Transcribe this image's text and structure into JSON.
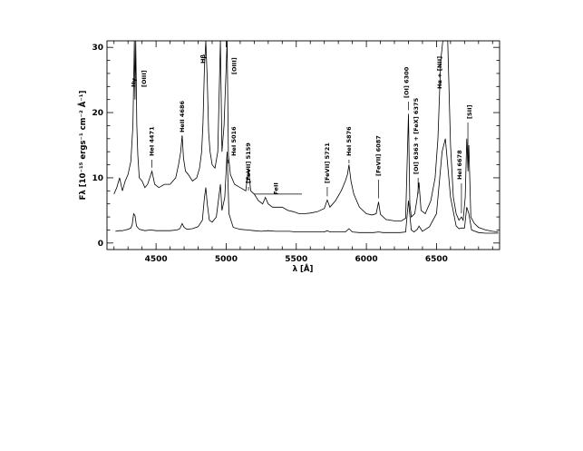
{
  "chart_data": {
    "type": "line",
    "xlabel": "λ [Å]",
    "ylabel": "Fλ [10⁻¹⁵ ergs⁻¹ cm⁻² Å⁻¹]",
    "xlim": [
      4150,
      6950
    ],
    "ylim": [
      -1,
      31
    ],
    "xticks": [
      4500,
      5000,
      5500,
      6000,
      6500
    ],
    "yticks": [
      0,
      10,
      20,
      30
    ],
    "grid": false,
    "series": [
      {
        "x": [
          4210,
          4240,
          4260,
          4280,
          4300,
          4320,
          4330,
          4340,
          4350,
          4360,
          4380,
          4420,
          4460,
          4500,
          4550,
          4600,
          4650,
          4670,
          4686,
          4700,
          4720,
          4760,
          4800,
          4830,
          4845,
          4855,
          4865,
          4880,
          4900,
          4930,
          4959,
          4970,
          4990,
          5007,
          5020,
          5050,
          5100,
          5150,
          5200,
          5250,
          5300,
          5350,
          5400,
          5450,
          5500,
          5550,
          5600,
          5650,
          5700,
          5721,
          5740,
          5800,
          5850,
          5876,
          5900,
          5950,
          6000,
          6050,
          6087,
          6120,
          6180,
          6240,
          6280,
          6300,
          6320,
          6340,
          6363,
          6375,
          6400,
          6450,
          6500,
          6540,
          6563,
          6600,
          6640,
          6660,
          6678,
          6700,
          6716,
          6731,
          6750,
          6800,
          6850,
          6900,
          6940
        ],
        "values": [
          1.8,
          1.9,
          1.9,
          2.0,
          2.1,
          2.3,
          2.8,
          4.5,
          4.2,
          2.6,
          2.1,
          1.9,
          2.0,
          1.9,
          1.9,
          1.9,
          2.0,
          2.2,
          3.0,
          2.4,
          2.1,
          2.2,
          2.5,
          3.5,
          7.0,
          8.5,
          6.0,
          3.5,
          3.2,
          4.0,
          9.0,
          5.0,
          7.0,
          14.0,
          4.5,
          2.4,
          2.1,
          2.0,
          1.9,
          1.8,
          1.9,
          1.8,
          1.8,
          1.8,
          1.7,
          1.7,
          1.7,
          1.7,
          1.7,
          1.9,
          1.7,
          1.7,
          1.7,
          2.2,
          1.7,
          1.6,
          1.6,
          1.6,
          1.7,
          1.6,
          1.6,
          1.6,
          1.7,
          6.5,
          2.0,
          1.7,
          2.1,
          2.6,
          1.8,
          2.5,
          4.5,
          14.0,
          16.0,
          7.0,
          2.6,
          2.2,
          2.3,
          2.3,
          5.5,
          4.5,
          2.0,
          1.6,
          1.5,
          1.5,
          1.5
        ]
      },
      {
        "x": [
          4200,
          4220,
          4240,
          4260,
          4280,
          4300,
          4320,
          4335,
          4345,
          4350,
          4355,
          4363,
          4370,
          4380,
          4400,
          4420,
          4440,
          4471,
          4490,
          4520,
          4560,
          4600,
          4640,
          4660,
          4676,
          4686,
          4696,
          4710,
          4730,
          4760,
          4790,
          4810,
          4825,
          4835,
          4845,
          4855,
          4865,
          4875,
          4885,
          4900,
          4920,
          4940,
          4959,
          4970,
          4985,
          5007,
          5016,
          5030,
          5060,
          5100,
          5140,
          5159,
          5175,
          5200,
          5230,
          5260,
          5280,
          5300,
          5330,
          5360,
          5400,
          5440,
          5480,
          5520,
          5560,
          5600,
          5650,
          5700,
          5721,
          5740,
          5780,
          5820,
          5850,
          5865,
          5876,
          5890,
          5910,
          5950,
          6000,
          6040,
          6070,
          6087,
          6100,
          6140,
          6200,
          6250,
          6280,
          6300,
          6310,
          6320,
          6345,
          6363,
          6375,
          6390,
          6420,
          6460,
          6490,
          6510,
          6530,
          6545,
          6563,
          6580,
          6600,
          6620,
          6640,
          6660,
          6678,
          6690,
          6705,
          6716,
          6725,
          6731,
          6745,
          6770,
          6800,
          6850,
          6900,
          6940
        ],
        "values": [
          7.5,
          8.5,
          10.0,
          8.0,
          9.5,
          10.5,
          12.5,
          18.0,
          32.0,
          22.0,
          32.0,
          18.0,
          13.5,
          10.0,
          9.5,
          8.5,
          9.0,
          11.0,
          9.0,
          8.5,
          9.0,
          9.0,
          10.0,
          12.0,
          14.0,
          16.5,
          13.0,
          11.0,
          10.5,
          9.5,
          10.0,
          11.5,
          14.0,
          18.5,
          27.0,
          32.0,
          25.0,
          17.0,
          14.0,
          12.0,
          11.5,
          14.0,
          32.0,
          14.0,
          18.0,
          32.0,
          13.5,
          10.5,
          9.0,
          8.5,
          8.0,
          11.5,
          8.0,
          7.5,
          6.5,
          6.0,
          7.0,
          6.0,
          5.5,
          5.5,
          5.5,
          5.0,
          4.8,
          4.5,
          4.5,
          4.6,
          4.8,
          5.3,
          6.6,
          5.5,
          6.5,
          8.0,
          9.5,
          10.5,
          12.0,
          9.5,
          7.5,
          5.5,
          4.5,
          4.3,
          4.5,
          6.3,
          4.4,
          3.6,
          3.4,
          3.4,
          3.8,
          19.8,
          6.0,
          4.0,
          4.5,
          7.0,
          9.3,
          5.0,
          4.5,
          6.5,
          10.0,
          16.0,
          28.0,
          32.0,
          32.0,
          32.0,
          15.0,
          7.0,
          4.5,
          3.5,
          4.0,
          3.5,
          7.0,
          16.0,
          11.0,
          15.0,
          4.0,
          3.0,
          2.4,
          2.0,
          1.8,
          1.7
        ]
      }
    ],
    "annotations": [
      {
        "text": "Hγ",
        "x": 4340
      },
      {
        "text": "[OIII]",
        "x": 4363
      },
      {
        "text": "HeI 4471",
        "x": 4471
      },
      {
        "text": "HeII 4686",
        "x": 4686
      },
      {
        "text": "Hβ",
        "x": 4861
      },
      {
        "text": "[OIII]",
        "x": 5007
      },
      {
        "text": "HeI 5016",
        "x": 5016
      },
      {
        "text": "[FeVII] 5159",
        "x": 5159
      },
      {
        "text": "FeII",
        "x": 5360
      },
      {
        "text": "[FeVII] 5721",
        "x": 5721
      },
      {
        "text": "HeI 5876",
        "x": 5876
      },
      {
        "text": "[FeVII] 6087",
        "x": 6087
      },
      {
        "text": "[OI] 6300",
        "x": 6300
      },
      {
        "text": "[OI] 6363 + [FeX] 6375",
        "x": 6369
      },
      {
        "text": "Hα + [NII]",
        "x": 6563
      },
      {
        "text": "HeI 6678",
        "x": 6678
      },
      {
        "text": "[SII]",
        "x": 6724
      }
    ]
  }
}
